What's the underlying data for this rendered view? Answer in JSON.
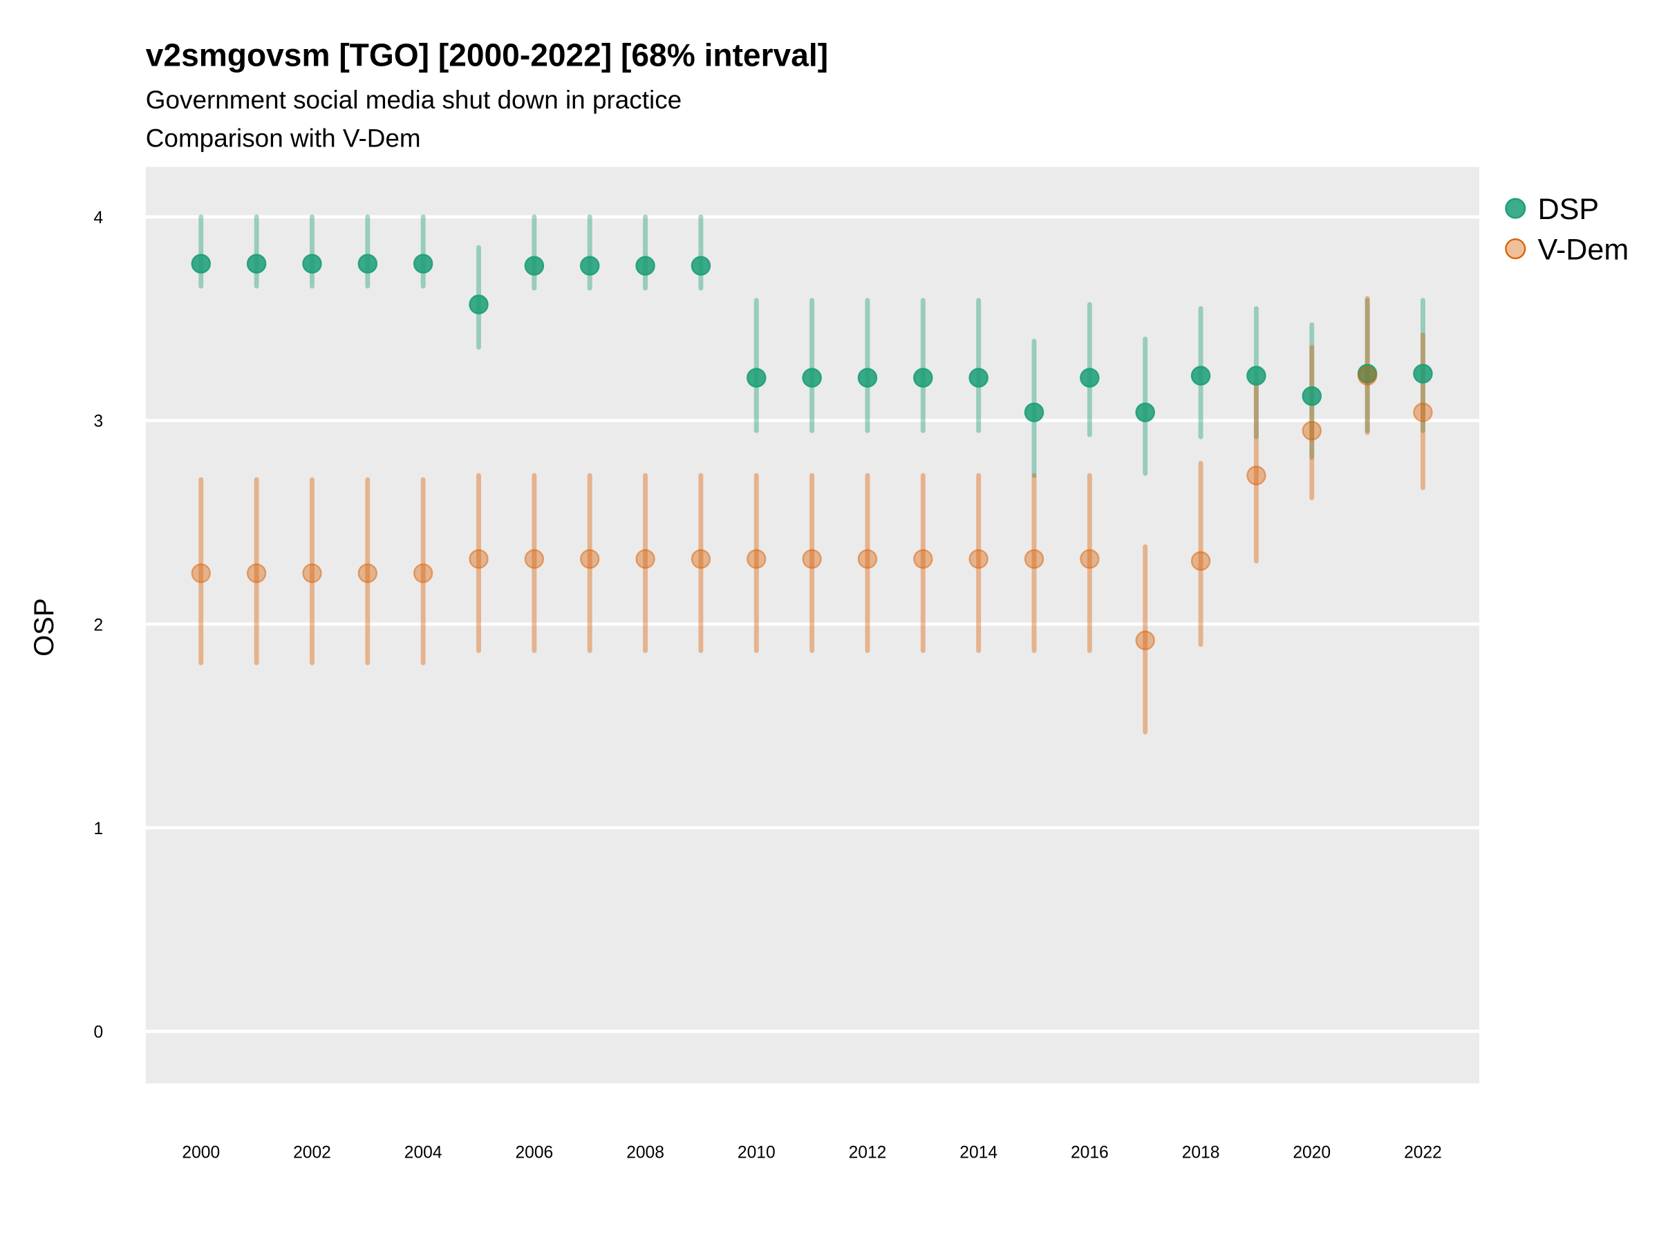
{
  "chart_data": {
    "type": "scatter",
    "title": "v2smgovsm [TGO] [2000-2022] [68% interval]",
    "subtitle": "Government social media shut down in practice",
    "subtitle2": "Comparison with V-Dem",
    "xlabel": "",
    "ylabel": "OSP",
    "xlim": [
      1999,
      2023
    ],
    "ylim": [
      -0.25,
      4.25
    ],
    "x_ticks": [
      "2000",
      "2002",
      "2004",
      "2006",
      "2008",
      "2010",
      "2012",
      "2014",
      "2016",
      "2018",
      "2020",
      "2022"
    ],
    "y_ticks": [
      "0",
      "1",
      "2",
      "3",
      "4"
    ],
    "grid": true,
    "legend_position": "right",
    "x": [
      2000,
      2001,
      2002,
      2003,
      2004,
      2005,
      2006,
      2007,
      2008,
      2009,
      2010,
      2011,
      2012,
      2013,
      2014,
      2015,
      2016,
      2017,
      2018,
      2019,
      2020,
      2021,
      2022
    ],
    "series": [
      {
        "name": "DSP",
        "color": "#1b9e77",
        "values": [
          3.77,
          3.77,
          3.77,
          3.77,
          3.77,
          3.57,
          3.76,
          3.76,
          3.76,
          3.76,
          3.21,
          3.21,
          3.21,
          3.21,
          3.21,
          3.04,
          3.21,
          3.04,
          3.22,
          3.22,
          3.12,
          3.23,
          3.23
        ],
        "lower": [
          3.66,
          3.66,
          3.66,
          3.66,
          3.66,
          3.36,
          3.65,
          3.65,
          3.65,
          3.65,
          2.95,
          2.95,
          2.95,
          2.95,
          2.95,
          2.73,
          2.93,
          2.74,
          2.92,
          2.92,
          2.82,
          2.95,
          2.95
        ],
        "upper": [
          4.0,
          4.0,
          4.0,
          4.0,
          4.0,
          3.85,
          4.0,
          4.0,
          4.0,
          4.0,
          3.59,
          3.59,
          3.59,
          3.59,
          3.59,
          3.39,
          3.57,
          3.4,
          3.55,
          3.55,
          3.47,
          3.59,
          3.59
        ]
      },
      {
        "name": "V-Dem",
        "color": "#d95f02",
        "values": [
          2.25,
          2.25,
          2.25,
          2.25,
          2.25,
          2.32,
          2.32,
          2.32,
          2.32,
          2.32,
          2.32,
          2.32,
          2.32,
          2.32,
          2.32,
          2.32,
          2.32,
          1.92,
          2.31,
          2.73,
          2.95,
          3.22,
          3.04
        ],
        "lower": [
          1.81,
          1.81,
          1.81,
          1.81,
          1.81,
          1.87,
          1.87,
          1.87,
          1.87,
          1.87,
          1.87,
          1.87,
          1.87,
          1.87,
          1.87,
          1.87,
          1.87,
          1.47,
          1.9,
          2.31,
          2.62,
          2.94,
          2.67
        ],
        "upper": [
          2.71,
          2.71,
          2.71,
          2.71,
          2.71,
          2.73,
          2.73,
          2.73,
          2.73,
          2.73,
          2.73,
          2.73,
          2.73,
          2.73,
          2.73,
          2.73,
          2.73,
          2.38,
          2.79,
          3.18,
          3.36,
          3.6,
          3.42
        ]
      }
    ]
  }
}
